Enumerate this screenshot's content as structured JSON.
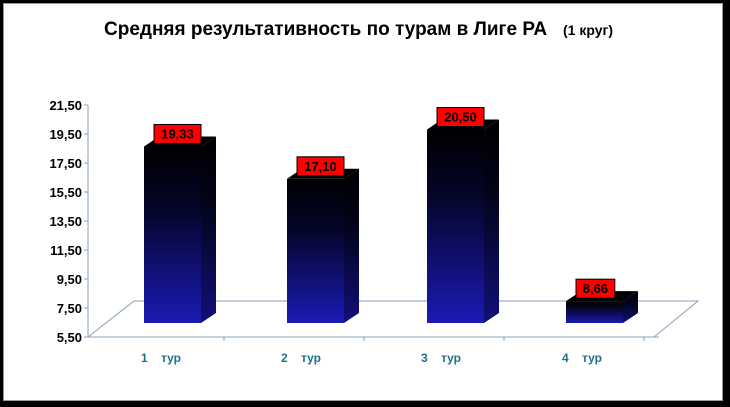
{
  "chart_data": {
    "type": "bar",
    "title": "Средняя результативность по турам в Лиге РА",
    "subtitle": "(1 круг)",
    "categories": [
      "1    тур",
      "2    тур",
      "3    тур",
      "4    тур"
    ],
    "values": [
      19.33,
      17.1,
      20.5,
      8.66
    ],
    "data_labels": [
      "19,33",
      "17,10",
      "20,50",
      "8,66"
    ],
    "yticks": [
      "5,50",
      "7,50",
      "9,50",
      "11,50",
      "13,50",
      "15,50",
      "17,50",
      "19,50",
      "21,50"
    ],
    "ylim": [
      5.5,
      21.5
    ],
    "xlabel": "",
    "ylabel": "",
    "grid": false,
    "legend": "none",
    "colors": {
      "bar_top": "#000000",
      "bar_bottom": "#1a1ab4",
      "label_bg": "#ff0000",
      "xtick_text": "#1f6f8b",
      "floor_line": "#8aa0b8"
    }
  }
}
